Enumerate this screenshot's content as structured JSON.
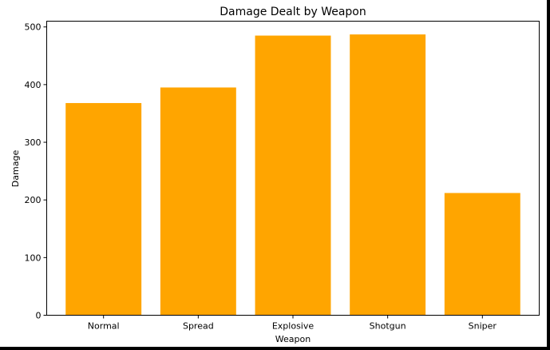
{
  "chart_data": {
    "type": "bar",
    "title": "Damage Dealt by Weapon",
    "xlabel": "Weapon",
    "ylabel": "Damage",
    "categories": [
      "Normal",
      "Spread",
      "Explosive",
      "Shotgun",
      "Sniper"
    ],
    "values": [
      368,
      395,
      485,
      487,
      212
    ],
    "ylim": [
      0,
      510
    ],
    "yticks": [
      "0",
      "100",
      "200",
      "300",
      "400",
      "500"
    ],
    "bar_color": "#ffa500",
    "grid": false,
    "legend": "none"
  }
}
